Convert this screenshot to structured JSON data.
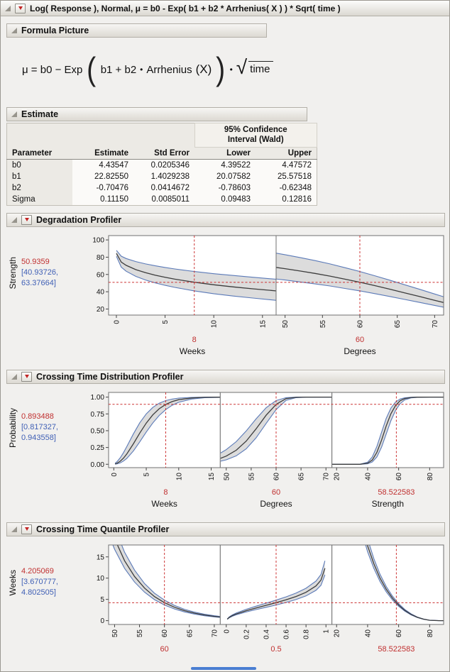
{
  "window": {
    "title": "Log( Response ), Normal, μ = b0 - Exp( b1 + b2 * Arrhenius( X ) ) * Sqrt( time )"
  },
  "colors": {
    "accent_red": "#c03030",
    "ci_text_blue": "#3f5fb5",
    "ci_line_blue": "#5b7ab8",
    "curve": "#3c3c3c",
    "band": "#dcdcdc",
    "crosshair": "#cc3333",
    "scroll_thumb": "#4a7ed2"
  },
  "formula_section": {
    "title": "Formula Picture",
    "formula": {
      "mu_eq": "μ = b0 − Exp",
      "paren_open": "(",
      "inner_terms": "b1 + b2",
      "dot": "•",
      "func_name": "Arrhenius",
      "func_arg": "(X)",
      "paren_close": ")",
      "dot2": "•",
      "sqrt_symbol": "√",
      "radicand": "time"
    }
  },
  "estimate_section": {
    "title": "Estimate",
    "ci_group_header": [
      "95% Confidence",
      "Interval (Wald)"
    ],
    "columns": [
      "Parameter",
      "Estimate",
      "Std Error",
      "Lower",
      "Upper"
    ],
    "rows": [
      [
        "b0",
        "4.43547",
        "0.0205346",
        "4.39522",
        "4.47572"
      ],
      [
        "b1",
        "22.82550",
        "1.4029238",
        "20.07582",
        "25.57518"
      ],
      [
        "b2",
        "-0.70476",
        "0.0414672",
        "-0.78603",
        "-0.62348"
      ],
      [
        "Sigma",
        "0.11150",
        "0.0085011",
        "0.09483",
        "0.12816"
      ]
    ]
  },
  "chart_data": [
    {
      "id": "degradation-profiler",
      "type": "line",
      "title": "Degradation Profiler",
      "ylabel": "Strength",
      "value": "50.9359",
      "ci": [
        "[40.93726,",
        "63.37664]"
      ],
      "ylim": [
        13,
        105
      ],
      "yticks": [
        20,
        40,
        60,
        80,
        100
      ],
      "ytick_labels": [
        "20",
        "40",
        "60",
        "80",
        "100"
      ],
      "cross_y": 50.9359,
      "panels": [
        {
          "xlabel": "Weeks",
          "x_value_label": "8",
          "cross_x": 8,
          "xlim": [
            -0.8,
            16.4
          ],
          "xticks": [
            0,
            5,
            10,
            15
          ],
          "xtick_labels": [
            "0",
            "5",
            "10",
            "15"
          ],
          "x": [
            0,
            0.5,
            1,
            2,
            3,
            4,
            5,
            6,
            8,
            10,
            12,
            14,
            16.4
          ],
          "mid": [
            84.4,
            74.4,
            70.6,
            65.6,
            62,
            59.1,
            56.7,
            54.6,
            51,
            48.1,
            45.6,
            43.4,
            41
          ],
          "lo": [
            81,
            68.5,
            63.8,
            57.8,
            53.6,
            50.2,
            47.4,
            45,
            41,
            37.7,
            35,
            32.7,
            30.1
          ],
          "hi": [
            87.9,
            81.2,
            78.5,
            74.9,
            72.2,
            70,
            68.1,
            66.4,
            63.4,
            60.9,
            58.8,
            56.8,
            54.5
          ]
        },
        {
          "xlabel": "Degrees",
          "x_value_label": "60",
          "cross_x": 60,
          "xlim": [
            48.8,
            71.2
          ],
          "xticks": [
            50,
            55,
            60,
            65,
            70
          ],
          "xtick_labels": [
            "50",
            "55",
            "60",
            "65",
            "70"
          ],
          "x": [
            48.8,
            50,
            52,
            54,
            56,
            58,
            60,
            62,
            64,
            66,
            68,
            70,
            71.2
          ],
          "mid": [
            68.1,
            66.7,
            64,
            61.2,
            58.1,
            54.6,
            51,
            47.1,
            43,
            38.7,
            34.4,
            30.1,
            27.5
          ],
          "lo": [
            54.7,
            53.6,
            51.4,
            49.1,
            46.7,
            43.8,
            41,
            37.8,
            34.5,
            31.1,
            27.6,
            24.2,
            22.1
          ],
          "hi": [
            84.7,
            82.9,
            79.6,
            76.1,
            72.2,
            67.9,
            63.4,
            58.5,
            53.4,
            48.1,
            42.8,
            37.4,
            34.2
          ]
        }
      ]
    },
    {
      "id": "crossing-time-distribution-profiler",
      "type": "line",
      "title": "Crossing Time Distribution Profiler",
      "ylabel": "Probability",
      "value": "0.893488",
      "ci": [
        "[0.817327,",
        "0.943558]"
      ],
      "ylim": [
        -0.05,
        1.07
      ],
      "yticks": [
        0,
        0.25,
        0.5,
        0.75,
        1
      ],
      "ytick_labels": [
        "0.00",
        "0.25",
        "0.50",
        "0.75",
        "1.00"
      ],
      "cross_y": 0.893488,
      "panels": [
        {
          "xlabel": "Weeks",
          "x_value_label": "8",
          "cross_x": 8,
          "xlim": [
            -0.8,
            16.4
          ],
          "xticks": [
            0,
            5,
            10,
            15
          ],
          "xtick_labels": [
            "0",
            "5",
            "10",
            "15"
          ],
          "x": [
            0.2,
            0.5,
            1,
            1.5,
            2,
            3,
            4,
            5,
            6,
            7,
            8,
            9,
            10,
            12,
            14,
            16.4
          ],
          "mid": [
            0.005,
            0.016,
            0.046,
            0.092,
            0.153,
            0.303,
            0.465,
            0.614,
            0.735,
            0.827,
            0.891,
            0.934,
            0.962,
            0.988,
            0.997,
            0.999
          ],
          "lo": [
            0.002,
            0.006,
            0.021,
            0.048,
            0.086,
            0.196,
            0.334,
            0.48,
            0.614,
            0.727,
            0.814,
            0.879,
            0.923,
            0.972,
            0.991,
            0.997
          ],
          "hi": [
            0.015,
            0.039,
            0.098,
            0.174,
            0.263,
            0.45,
            0.618,
            0.751,
            0.846,
            0.909,
            0.948,
            0.971,
            0.985,
            0.996,
            0.999,
            1
          ]
        },
        {
          "xlabel": "Degrees",
          "x_value_label": "60",
          "cross_x": 60,
          "xlim": [
            48.8,
            71.2
          ],
          "xticks": [
            50,
            55,
            60,
            65,
            70
          ],
          "xtick_labels": [
            "50",
            "55",
            "60",
            "65",
            "70"
          ],
          "x": [
            48.8,
            50,
            52,
            54,
            56,
            58,
            60,
            62,
            64,
            66,
            71.2
          ],
          "mid": [
            0.087,
            0.122,
            0.209,
            0.345,
            0.529,
            0.731,
            0.891,
            0.978,
            0.997,
            1,
            1
          ],
          "lo": [
            0.045,
            0.066,
            0.125,
            0.23,
            0.395,
            0.608,
            0.814,
            0.952,
            0.992,
            0.999,
            1
          ],
          "hi": [
            0.166,
            0.218,
            0.337,
            0.496,
            0.678,
            0.843,
            0.948,
            0.992,
            0.999,
            1,
            1
          ]
        },
        {
          "xlabel": "Strength",
          "x_value_label": "58.522583",
          "cross_x": 58.522583,
          "xlim": [
            17,
            89
          ],
          "xticks": [
            20,
            40,
            60,
            80
          ],
          "xtick_labels": [
            "20",
            "40",
            "60",
            "80"
          ],
          "x": [
            17,
            30,
            35,
            40,
            43,
            46,
            49,
            52,
            55,
            58,
            61,
            64,
            68,
            72,
            80,
            89
          ],
          "mid": [
            0,
            0,
            0,
            0.015,
            0.063,
            0.178,
            0.36,
            0.57,
            0.751,
            0.876,
            0.946,
            0.979,
            0.995,
            0.999,
            1,
            1
          ],
          "lo": [
            0,
            0,
            0,
            0.007,
            0.034,
            0.11,
            0.255,
            0.45,
            0.647,
            0.803,
            0.904,
            0.959,
            0.989,
            0.997,
            1,
            1
          ],
          "hi": [
            0,
            0,
            0.001,
            0.03,
            0.109,
            0.266,
            0.477,
            0.683,
            0.836,
            0.927,
            0.972,
            0.99,
            0.998,
            1,
            1,
            1
          ]
        }
      ]
    },
    {
      "id": "crossing-time-quantile-profiler",
      "type": "line",
      "title": "Crossing Time Quantile Profiler",
      "ylabel": "Weeks",
      "value": "4.205069",
      "ci": [
        "[3.670777,",
        "4.802505]"
      ],
      "ylim": [
        -0.9,
        17.8
      ],
      "yticks": [
        0,
        5,
        10,
        15
      ],
      "ytick_labels": [
        "0",
        "5",
        "10",
        "15"
      ],
      "cross_y": 4.205069,
      "panels": [
        {
          "xlabel": "",
          "x_value_label": "60",
          "cross_x": 60,
          "xlim": [
            48.8,
            71.2
          ],
          "xticks": [
            50,
            55,
            60,
            65,
            70
          ],
          "xtick_labels": [
            "50",
            "55",
            "60",
            "65",
            "70"
          ],
          "x": [
            48.8,
            50,
            52,
            54,
            56,
            58,
            60,
            62,
            64,
            66,
            68,
            70,
            71.2
          ],
          "mid": [
            23.3,
            19.3,
            14.1,
            10.4,
            7.66,
            5.67,
            4.22,
            3.15,
            2.35,
            1.77,
            1.33,
            1.01,
            0.86
          ],
          "lo": [
            20.3,
            16.8,
            12.3,
            9.08,
            6.69,
            4.95,
            3.68,
            2.75,
            2.05,
            1.55,
            1.16,
            0.88,
            0.75
          ],
          "hi": [
            26.6,
            22,
            16.1,
            11.9,
            8.74,
            6.47,
            4.82,
            3.59,
            2.68,
            2.02,
            1.52,
            1.15,
            0.98
          ]
        },
        {
          "xlabel": "",
          "x_value_label": "0.5",
          "cross_x": 0.5,
          "xlim": [
            -0.06,
            1.06
          ],
          "xticks": [
            0,
            0.2,
            0.4,
            0.6,
            0.8,
            1
          ],
          "xtick_labels": [
            "0",
            "0.2",
            "0.4",
            "0.6",
            "0.8",
            "1"
          ],
          "x": [
            0.01,
            0.03,
            0.06,
            0.1,
            0.2,
            0.3,
            0.4,
            0.5,
            0.6,
            0.7,
            0.8,
            0.9,
            0.95,
            0.99
          ],
          "mid": [
            0.36,
            0.77,
            1.17,
            1.57,
            2.34,
            2.98,
            3.6,
            4.22,
            4.9,
            5.68,
            6.67,
            8.17,
            9.52,
            12.33
          ],
          "lo": [
            0.31,
            0.67,
            1.02,
            1.37,
            2.04,
            2.6,
            3.14,
            3.68,
            4.28,
            4.96,
            5.82,
            7.13,
            8.31,
            10.76
          ],
          "hi": [
            0.41,
            0.88,
            1.33,
            1.79,
            2.67,
            3.4,
            4.11,
            4.82,
            5.59,
            6.48,
            7.61,
            9.32,
            10.86,
            14.07
          ]
        },
        {
          "xlabel": "",
          "x_value_label": "58.522583",
          "cross_x": 58.522583,
          "xlim": [
            17,
            89
          ],
          "xticks": [
            20,
            40,
            60,
            80
          ],
          "xtick_labels": [
            "20",
            "40",
            "60",
            "80"
          ],
          "x": [
            35,
            40,
            44,
            48,
            52,
            56,
            60,
            64,
            68,
            72,
            76,
            80,
            86,
            89
          ],
          "mid": [
            24.4,
            17.6,
            13.4,
            10,
            7.39,
            5.3,
            3.67,
            2.41,
            1.47,
            0.79,
            0.35,
            0.09,
            0,
            0
          ],
          "lo": [
            22.4,
            16.2,
            12.3,
            9.2,
            6.8,
            4.88,
            3.38,
            2.22,
            1.35,
            0.73,
            0.32,
            0.08,
            0,
            0
          ],
          "hi": [
            26.6,
            19.2,
            14.6,
            10.9,
            8.05,
            5.78,
            4,
            2.63,
            1.6,
            0.86,
            0.38,
            0.1,
            0,
            0
          ]
        }
      ]
    }
  ]
}
